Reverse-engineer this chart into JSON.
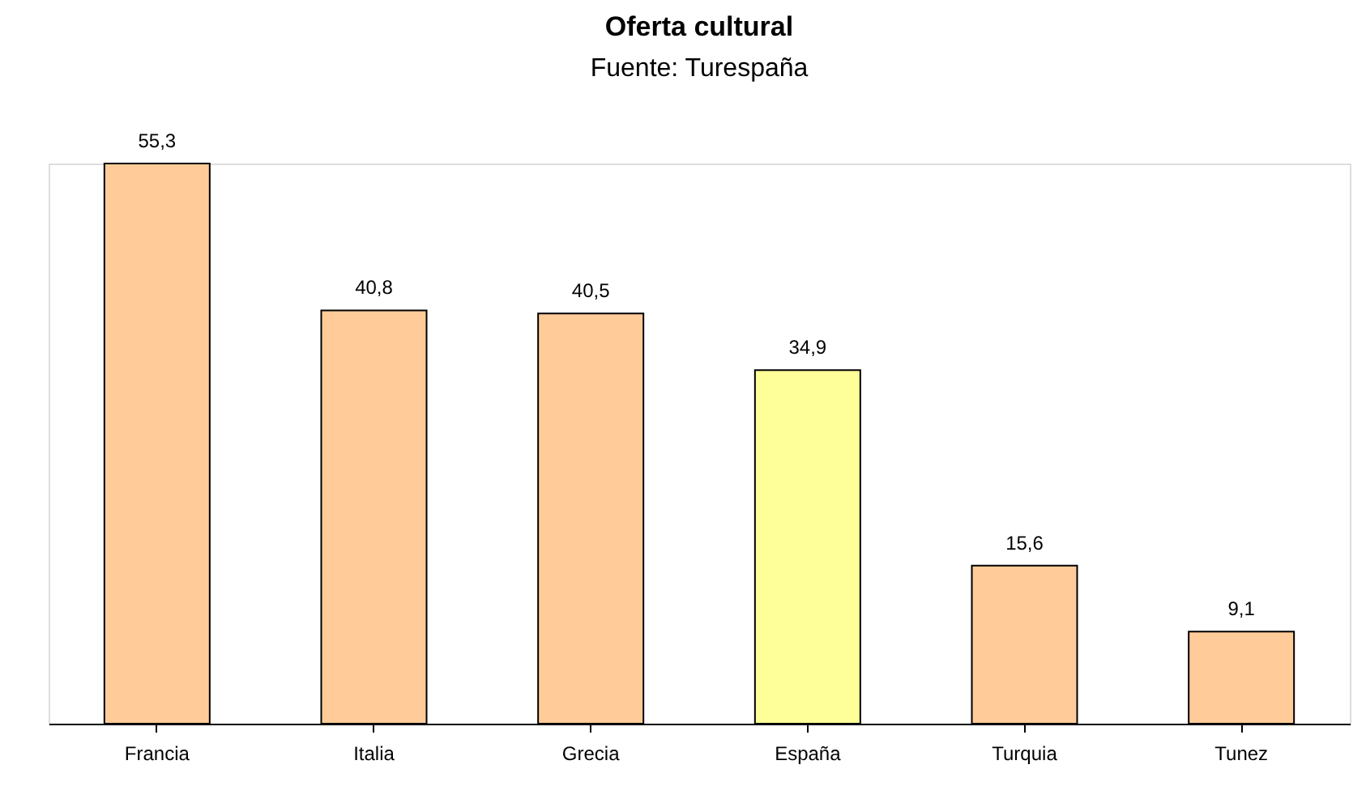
{
  "chart_data": {
    "type": "bar",
    "title": "Oferta cultural",
    "subtitle": "Fuente: Turespaña",
    "categories": [
      "Francia",
      "Italia",
      "Grecia",
      "España",
      "Turquia",
      "Tunez"
    ],
    "values": [
      55.3,
      40.8,
      40.5,
      34.9,
      15.6,
      9.1
    ],
    "colors": [
      "#ffcc99",
      "#ffcc99",
      "#ffcc99",
      "#ffff99",
      "#ffcc99",
      "#ffcc99"
    ],
    "value_labels": [
      "55,3",
      "40,8",
      "40,5",
      "34,9",
      "15,6",
      "9,1"
    ],
    "grid": false
  }
}
